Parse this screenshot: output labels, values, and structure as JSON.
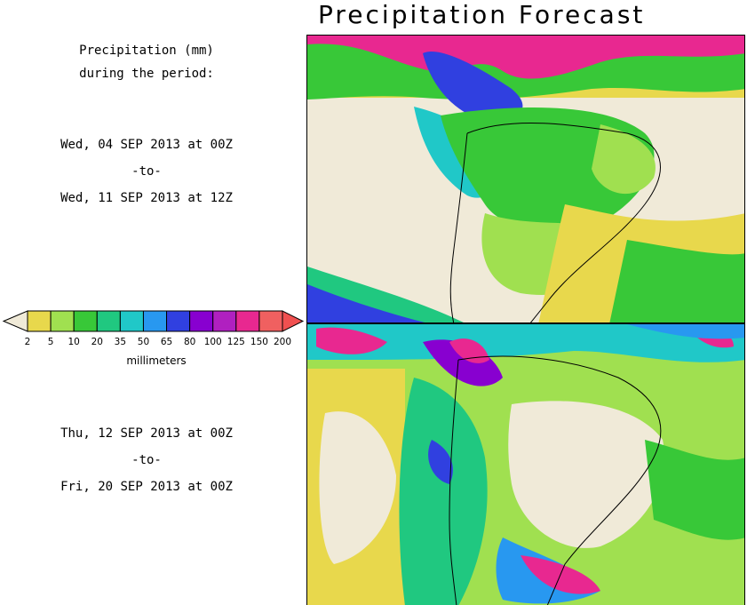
{
  "title": "Precipitation Forecast",
  "header": {
    "line1": "Precipitation (mm)",
    "line2": "during the period:"
  },
  "period1": {
    "start": "Wed, 04 SEP 2013 at 00Z",
    "sep": "-to-",
    "end": "Wed, 11 SEP 2013 at 12Z"
  },
  "period2": {
    "start": "Thu, 12 SEP 2013 at 00Z",
    "sep": "-to-",
    "end": "Fri, 20 SEP 2013 at 00Z"
  },
  "legend": {
    "units": "millimeters",
    "ticks": [
      "2",
      "5",
      "10",
      "20",
      "35",
      "50",
      "65",
      "80",
      "100",
      "125",
      "150",
      "200"
    ],
    "colors": [
      "#e8d84c",
      "#a0e050",
      "#38c838",
      "#20c880",
      "#20c8c8",
      "#2898f0",
      "#3040e0",
      "#8800d0",
      "#b020c0",
      "#e82890",
      "#f06060"
    ],
    "low_color": "#f0ead8",
    "high_color": "#f05050"
  }
}
